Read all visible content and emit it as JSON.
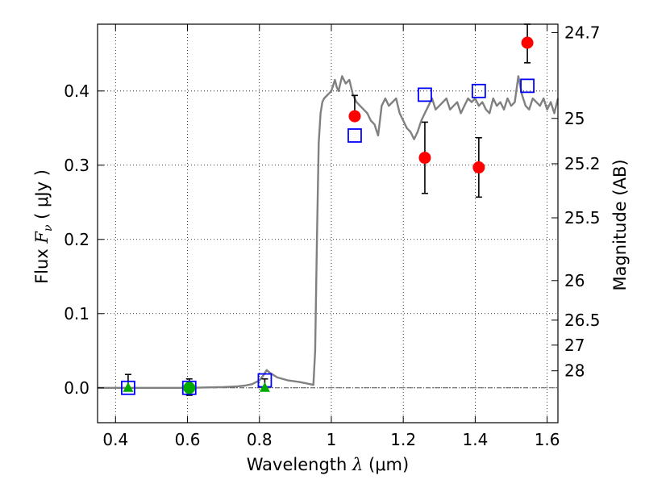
{
  "chart_data": {
    "type": "scatter",
    "xlabel": "Wavelength  λ (μm)",
    "ylabel": "Flux  F_ν ( μJy )",
    "ylabel_parts": {
      "prefix": "Flux  ",
      "symbol": "F",
      "subscript": "ν",
      "suffix": "  ( μJy )"
    },
    "xlabel_parts": {
      "prefix": "Wavelength  ",
      "symbol": "λ",
      "suffix": " (μm)"
    },
    "ylabel_right": "Magnitude (AB)",
    "xlim": [
      0.35,
      1.63
    ],
    "ylim": [
      -0.047,
      0.49
    ],
    "grid": true,
    "x_ticks": [
      0.4,
      0.6,
      0.8,
      1.0,
      1.2,
      1.4,
      1.6
    ],
    "x_tick_labels": [
      "0.4",
      "0.6",
      "0.8",
      "1",
      "1.2",
      "1.4",
      "1.6"
    ],
    "y_ticks": [
      0.0,
      0.1,
      0.2,
      0.3,
      0.4
    ],
    "y_tick_labels": [
      "0.0",
      "0.1",
      "0.2",
      "0.3",
      "0.4"
    ],
    "right_ticks": [
      {
        "label": "24.7",
        "mag": 24.7
      },
      {
        "label": "25",
        "mag": 25.0
      },
      {
        "label": "25.2",
        "mag": 25.2
      },
      {
        "label": "25.5",
        "mag": 25.5
      },
      {
        "label": "26",
        "mag": 26.0
      },
      {
        "label": "26.5",
        "mag": 26.5
      },
      {
        "label": "27",
        "mag": 27.0
      },
      {
        "label": "28",
        "mag": 28.0
      }
    ],
    "series": [
      {
        "style": "template-spectrum",
        "color": "#808080",
        "x": [
          0.35,
          0.5,
          0.6,
          0.7,
          0.74,
          0.76,
          0.78,
          0.8,
          0.81,
          0.82,
          0.83,
          0.85,
          0.88,
          0.91,
          0.93,
          0.95,
          0.955,
          0.96,
          0.965,
          0.97,
          0.975,
          0.98,
          0.99,
          1.0,
          1.01,
          1.015,
          1.02,
          1.03,
          1.04,
          1.05,
          1.06,
          1.07,
          1.08,
          1.09,
          1.1,
          1.11,
          1.12,
          1.13,
          1.14,
          1.15,
          1.16,
          1.17,
          1.18,
          1.19,
          1.2,
          1.21,
          1.22,
          1.23,
          1.24,
          1.25,
          1.26,
          1.27,
          1.28,
          1.29,
          1.3,
          1.31,
          1.32,
          1.33,
          1.34,
          1.35,
          1.36,
          1.37,
          1.38,
          1.39,
          1.4,
          1.41,
          1.42,
          1.43,
          1.44,
          1.45,
          1.46,
          1.47,
          1.48,
          1.49,
          1.5,
          1.51,
          1.52,
          1.53,
          1.54,
          1.55,
          1.56,
          1.57,
          1.58,
          1.59,
          1.6,
          1.61,
          1.62,
          1.63
        ],
        "y": [
          0.0,
          0.0,
          0.0,
          0.001,
          0.002,
          0.003,
          0.005,
          0.01,
          0.016,
          0.024,
          0.02,
          0.014,
          0.01,
          0.008,
          0.006,
          0.004,
          0.05,
          0.2,
          0.33,
          0.37,
          0.385,
          0.39,
          0.395,
          0.4,
          0.415,
          0.405,
          0.4,
          0.42,
          0.41,
          0.415,
          0.395,
          0.385,
          0.38,
          0.375,
          0.37,
          0.36,
          0.355,
          0.34,
          0.38,
          0.39,
          0.38,
          0.385,
          0.39,
          0.37,
          0.36,
          0.35,
          0.345,
          0.335,
          0.345,
          0.36,
          0.37,
          0.38,
          0.39,
          0.375,
          0.38,
          0.385,
          0.39,
          0.375,
          0.38,
          0.385,
          0.37,
          0.38,
          0.39,
          0.385,
          0.39,
          0.38,
          0.385,
          0.375,
          0.37,
          0.39,
          0.38,
          0.385,
          0.375,
          0.39,
          0.38,
          0.385,
          0.42,
          0.395,
          0.38,
          0.375,
          0.39,
          0.385,
          0.38,
          0.39,
          0.375,
          0.385,
          0.37,
          0.39
        ]
      },
      {
        "style": "measured",
        "marker": "circle",
        "color": "#ff0000",
        "x": [
          1.065,
          1.26,
          1.41,
          1.545
        ],
        "y": [
          0.366,
          0.31,
          0.297,
          0.465
        ],
        "err_low": [
          0.366,
          0.262,
          0.257,
          0.438
        ],
        "err_high": [
          0.394,
          0.358,
          0.337,
          0.49
        ]
      },
      {
        "style": "model",
        "marker": "square",
        "color": "#0000ff",
        "x": [
          0.435,
          0.605,
          0.815,
          1.065,
          1.26,
          1.41,
          1.545
        ],
        "y": [
          0.0,
          0.0,
          0.01,
          0.34,
          0.395,
          0.4,
          0.407
        ]
      },
      {
        "style": "upper-limit",
        "marker": "triangle",
        "color": "#00aa00",
        "x": [
          0.435,
          0.815
        ],
        "y": [
          0.0,
          0.0
        ],
        "err_high": [
          0.018,
          0.012
        ]
      },
      {
        "style": "detection",
        "marker": "circle",
        "color": "#00aa00",
        "x": [
          0.605
        ],
        "y": [
          0.0
        ],
        "err_low": [
          -0.01
        ],
        "err_high": [
          0.012
        ]
      }
    ]
  }
}
